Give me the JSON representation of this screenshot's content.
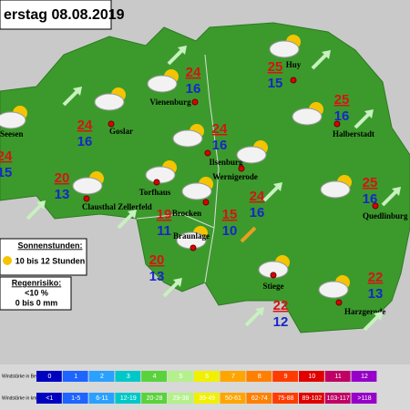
{
  "title": "erstag 08.08.2019",
  "cities": [
    {
      "name": "Seesen",
      "max": 24,
      "min": 15
    },
    {
      "name": "Goslar",
      "max": 24,
      "min": 16
    },
    {
      "name": "Vienenburg",
      "max": 24,
      "min": 16
    },
    {
      "name": "Huy",
      "max": 25,
      "min": 15
    },
    {
      "name": "Halberstadt",
      "max": 25,
      "min": 16
    },
    {
      "name": "Ilsenburg",
      "max": 24,
      "min": 16
    },
    {
      "name": "Wernigerode",
      "max": 24,
      "min": 16
    },
    {
      "name": "Clausthal Zellerfeld",
      "max": 20,
      "min": 13
    },
    {
      "name": "Torfhaus",
      "max": 19,
      "min": 11
    },
    {
      "name": "Brocken",
      "max": 15,
      "min": 10
    },
    {
      "name": "Quedlinburg",
      "max": 25,
      "min": 16
    },
    {
      "name": "Braunlage",
      "max": 20,
      "min": 13
    },
    {
      "name": "Stiege",
      "max": 22,
      "min": 12
    },
    {
      "name": "Harzgerode",
      "max": 22,
      "min": 13
    }
  ],
  "sun": {
    "heading": "Sonnenstunden:",
    "text": "10 bis 12 Stunden"
  },
  "rain": {
    "heading": "Regenrisiko:",
    "chance": "<10 %",
    "amount": "0 bis 0 mm"
  },
  "wind_scale": {
    "beaufort_label": "Windstärke in Beaufort",
    "kmh_label": "Windstärke in km/h",
    "beaufort": [
      "0",
      "1",
      "2",
      "3",
      "4",
      "5",
      "6",
      "7",
      "8",
      "9",
      "10",
      "11",
      "12"
    ],
    "kmh": [
      "<1",
      "1-5",
      "6-11",
      "12-19",
      "20-28",
      "29-38",
      "39-49",
      "50-61",
      "62-74",
      "75-88",
      "89-102",
      "103-117",
      ">118"
    ]
  }
}
